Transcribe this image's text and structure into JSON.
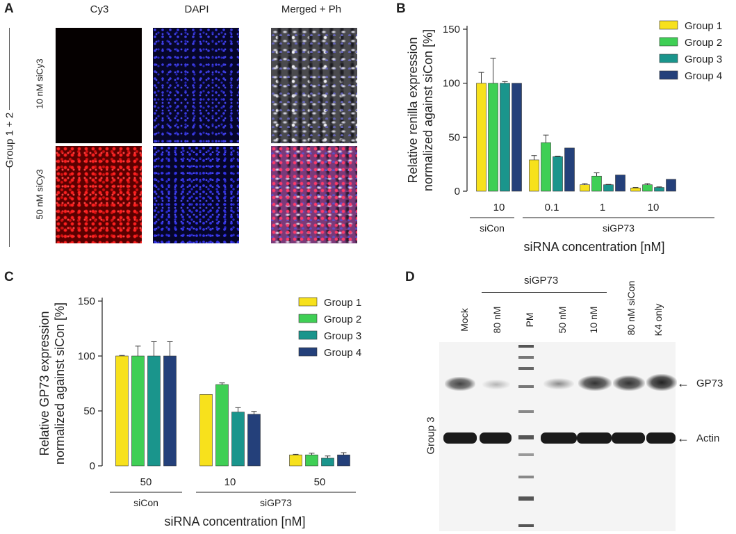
{
  "panels": {
    "A": {
      "letter": "A",
      "col_titles": [
        "Cy3",
        "DAPI",
        "Merged + Ph"
      ],
      "row_labels": [
        "10 nM siCy3",
        "50 nM siCy3"
      ],
      "group_label": "Group 1 + 2"
    },
    "B": {
      "letter": "B"
    },
    "C": {
      "letter": "C"
    },
    "D": {
      "letter": "D",
      "sigp73_label": "siGP73",
      "lanes": [
        "Mock",
        "80 nM",
        "PM",
        "50 nM",
        "10 nM",
        "80 nM siCon",
        "K4 only"
      ],
      "arrows": [
        "GP73",
        "Actin"
      ],
      "group_label": "Group 3"
    }
  },
  "colors": {
    "group1": "#f7e11c",
    "group2": "#3fcf55",
    "group3": "#1a958c",
    "group4": "#24407a"
  },
  "chart_data": [
    {
      "panel": "B",
      "type": "bar",
      "ylabel": "Relative renilla expression normalized against siCon [%]",
      "ylabel_lines": [
        "Relative renilla expression",
        "normalized against siCon [%]"
      ],
      "xlabel": "siRNA concentration [nM]",
      "ylim": [
        0,
        150
      ],
      "yticks": [
        "0",
        "50",
        "100",
        "150"
      ],
      "categories": [
        "10",
        "0.1",
        "1",
        "10"
      ],
      "category_groups": [
        {
          "label": "siCon",
          "span": [
            0,
            0
          ]
        },
        {
          "label": "siGP73",
          "span": [
            1,
            3
          ]
        }
      ],
      "legend_position": "top-right",
      "series": [
        {
          "name": "Group 1",
          "values": [
            100,
            29,
            6,
            3
          ],
          "errors": [
            10,
            4,
            1,
            0.5
          ]
        },
        {
          "name": "Group 2",
          "values": [
            100,
            45,
            14,
            6
          ],
          "errors": [
            23,
            7,
            3,
            1
          ]
        },
        {
          "name": "Group 3",
          "values": [
            100,
            32,
            6,
            3.5
          ],
          "errors": [
            1.5,
            0.5,
            0.3,
            0.5
          ]
        },
        {
          "name": "Group 4",
          "values": [
            100,
            40,
            15,
            11
          ],
          "errors": [
            0,
            0,
            0,
            0
          ]
        }
      ]
    },
    {
      "panel": "C",
      "type": "bar",
      "ylabel": "Relative GP73 expression normalized against siCon [%]",
      "ylabel_lines": [
        "Relative GP73 expression",
        "normalized against siCon [%]"
      ],
      "xlabel": "siRNA concentration [nM]",
      "ylim": [
        0,
        150
      ],
      "yticks": [
        "0",
        "50",
        "100",
        "150"
      ],
      "categories": [
        "50",
        "10",
        "50"
      ],
      "category_groups": [
        {
          "label": "siCon",
          "span": [
            0,
            0
          ]
        },
        {
          "label": "siGP73",
          "span": [
            1,
            2
          ]
        }
      ],
      "legend_position": "top-right",
      "series": [
        {
          "name": "Group 1",
          "values": [
            100,
            65,
            10
          ],
          "errors": [
            0.5,
            0,
            0.5
          ]
        },
        {
          "name": "Group 2",
          "values": [
            100,
            74,
            10
          ],
          "errors": [
            9,
            1.5,
            1.5
          ]
        },
        {
          "name": "Group 3",
          "values": [
            100,
            49,
            7
          ],
          "errors": [
            13,
            4,
            2
          ]
        },
        {
          "name": "Group 4",
          "values": [
            100,
            47,
            10
          ],
          "errors": [
            13,
            2.5,
            2
          ]
        }
      ]
    }
  ]
}
